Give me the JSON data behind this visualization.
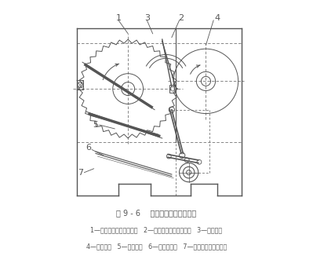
{
  "title_line": "图 9 - 6    毛刷刷绒部分调节装置",
  "legend_line1": "1—后挡风板及其调节装置   2—前挡风板及其调节装置   3—毛刷滚筒",
  "legend_line2": "4—锯片滚筒   5—托绒部分   6—排杂调节板   7—排杂调节板调节装置",
  "bg_color": "#ffffff",
  "line_color": "#555555",
  "fig_width": 3.99,
  "fig_height": 3.26,
  "dpi": 100
}
